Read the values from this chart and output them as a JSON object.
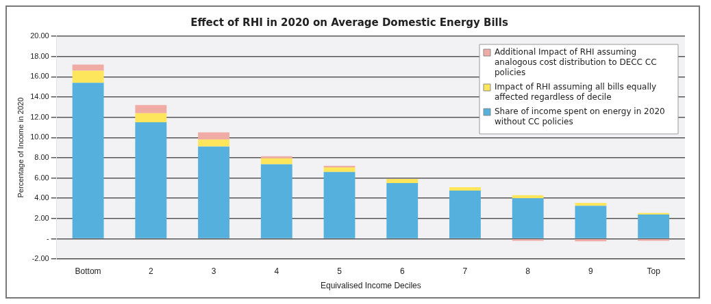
{
  "chart_data": {
    "type": "bar",
    "title": "Effect of RHI in 2020 on Average Domestic Energy Bills",
    "xlabel": "Equivalised Income Deciles",
    "ylabel": "Percentage of Income in 2020",
    "categories": [
      "Bottom",
      "2",
      "3",
      "4",
      "5",
      "6",
      "7",
      "8",
      "9",
      "Top"
    ],
    "stacked": true,
    "series": [
      {
        "name": "Share of income spent on energy in 2020 without CC policies",
        "color": "#55b0de",
        "values": [
          15.4,
          11.5,
          9.1,
          7.35,
          6.6,
          5.5,
          4.75,
          4.0,
          3.25,
          2.4
        ]
      },
      {
        "name": "Impact of RHI assuming all bills equally affected regardless of decile",
        "color": "#fde55c",
        "values": [
          1.2,
          0.9,
          0.7,
          0.6,
          0.45,
          0.4,
          0.35,
          0.3,
          0.3,
          0.15
        ]
      },
      {
        "name": "Additional Impact of RHI assuming analogous cost distribution to DECC CC policies",
        "color": "#f0aca4",
        "values": [
          0.6,
          0.8,
          0.7,
          0.2,
          0.15,
          null,
          null,
          -0.2,
          -0.25,
          -0.2
        ]
      }
    ],
    "ylim": [
      -2,
      20
    ],
    "yticks": [
      {
        "value": -2,
        "label": "-2.00"
      },
      {
        "value": 0,
        "label": "-"
      },
      {
        "value": 2,
        "label": "2.00"
      },
      {
        "value": 4,
        "label": "4.00"
      },
      {
        "value": 6,
        "label": "6.00"
      },
      {
        "value": 8,
        "label": "8.00"
      },
      {
        "value": 10,
        "label": "10.00"
      },
      {
        "value": 12,
        "label": "12.00"
      },
      {
        "value": 14,
        "label": "14.00"
      },
      {
        "value": 16,
        "label": "16.00"
      },
      {
        "value": 18,
        "label": "18.00"
      },
      {
        "value": 20,
        "label": "20.00"
      }
    ],
    "grid": "y",
    "legend": "top right"
  }
}
